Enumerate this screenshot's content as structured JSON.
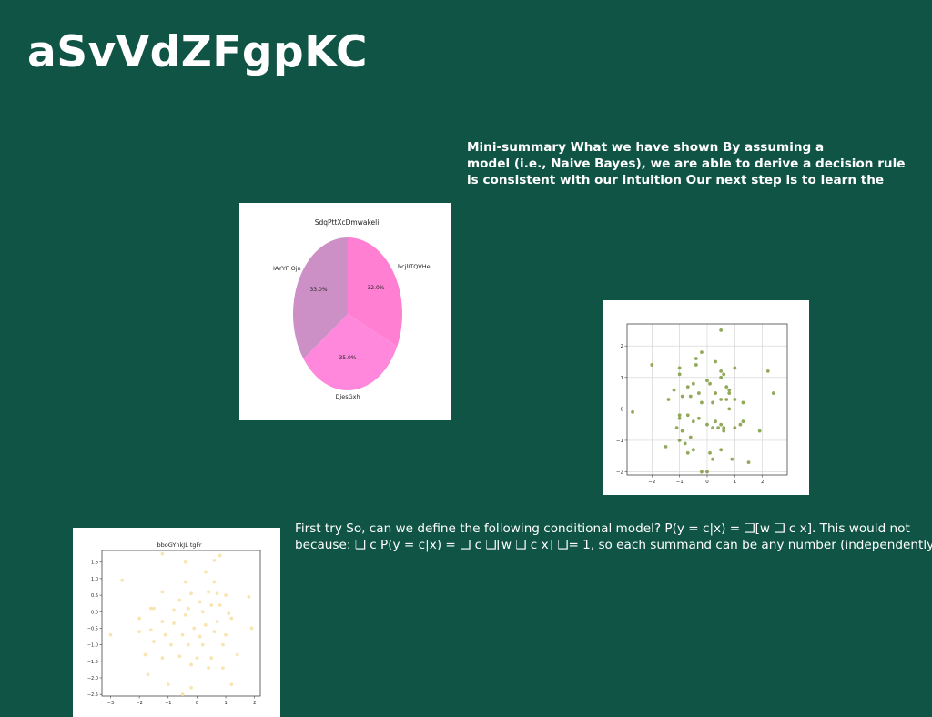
{
  "slide": {
    "title": "aSvVdZFgpKC",
    "summary_lines": [
      "Mini-summary What we have shown By assuming a",
      "model (i.e., Naive Bayes), we are able to derive a decision rule",
      "is consistent with our intuition Our next step is to learn the"
    ],
    "firsttry_lines": [
      "First try So, can we define the following conditional model? P(y = c|x) = ❑[w ❑ c x]. This would not",
      "because: ❑ c P(y = c|x) = ❑ c ❑[w ❑ c x] ❑= 1, so each summand can be any number (independently)"
    ]
  },
  "chart_data": [
    {
      "type": "pie",
      "title": "SdqPttXcDmwakeli",
      "slices": [
        {
          "label": "hcjlITQVHe",
          "value": 32.0,
          "pct_label": "32.0%",
          "color": "#ff7fd3"
        },
        {
          "label": "IAYYF Ojn",
          "value": 33.0,
          "pct_label": "33.0%",
          "color": "#ff88dd"
        },
        {
          "label": "DjesGxh",
          "value": 35.0,
          "pct_label": "35.0%",
          "color": "#cc8fc6"
        }
      ]
    },
    {
      "type": "scatter",
      "title": "",
      "color": "#7f9a3f",
      "xlim": [
        -2.9,
        2.9
      ],
      "ylim": [
        -2.1,
        2.7
      ],
      "xticks": [
        -2,
        -1,
        0,
        1,
        2
      ],
      "yticks": [
        -2,
        -1,
        0,
        1,
        2
      ],
      "tick_labels_x": [
        "−2",
        "−1",
        "0",
        "1",
        "2"
      ],
      "tick_labels_y": [
        "−2",
        "−1",
        "0",
        "1",
        "2"
      ],
      "grid": true,
      "points": [
        [
          0.5,
          2.5
        ],
        [
          -0.2,
          1.8
        ],
        [
          -0.4,
          1.6
        ],
        [
          -0.4,
          1.4
        ],
        [
          0.3,
          1.5
        ],
        [
          -1,
          1.3
        ],
        [
          -1,
          1.1
        ],
        [
          -2,
          1.4
        ],
        [
          1,
          1.3
        ],
        [
          0.5,
          1.2
        ],
        [
          0.6,
          1.1
        ],
        [
          0.5,
          1
        ],
        [
          2.2,
          1.2
        ],
        [
          2.4,
          0.5
        ],
        [
          -1.2,
          0.6
        ],
        [
          -0.7,
          0.7
        ],
        [
          -0.5,
          0.8
        ],
        [
          0,
          0.9
        ],
        [
          0.1,
          0.8
        ],
        [
          0.3,
          0.5
        ],
        [
          0.7,
          0.7
        ],
        [
          0.8,
          0.6
        ],
        [
          0.7,
          0.3
        ],
        [
          0.8,
          0.5
        ],
        [
          -1.4,
          0.3
        ],
        [
          -0.9,
          0.4
        ],
        [
          -0.6,
          0.4
        ],
        [
          -0.3,
          0.5
        ],
        [
          -0.2,
          0.2
        ],
        [
          0.2,
          0.2
        ],
        [
          0.5,
          0.3
        ],
        [
          1,
          0.3
        ],
        [
          1.3,
          0.2
        ],
        [
          -1,
          -0.2
        ],
        [
          -1,
          -0.3
        ],
        [
          -0.7,
          -0.2
        ],
        [
          -0.5,
          -0.4
        ],
        [
          -0.3,
          -0.3
        ],
        [
          0,
          -0.5
        ],
        [
          0.2,
          -0.6
        ],
        [
          0.3,
          -0.4
        ],
        [
          0.4,
          -0.6
        ],
        [
          0.5,
          -0.5
        ],
        [
          0.6,
          -0.7
        ],
        [
          1,
          -0.6
        ],
        [
          1.2,
          -0.5
        ],
        [
          1.3,
          -0.4
        ],
        [
          -1.1,
          -0.6
        ],
        [
          -0.9,
          -0.7
        ],
        [
          -0.6,
          -0.9
        ],
        [
          -2.7,
          -0.1
        ],
        [
          -1.5,
          -1.2
        ],
        [
          -1,
          -1
        ],
        [
          -0.8,
          -1.1
        ],
        [
          -0.7,
          -1.4
        ],
        [
          -0.5,
          -1.3
        ],
        [
          0.1,
          -1.4
        ],
        [
          0.5,
          -1.3
        ],
        [
          0.9,
          -1.6
        ],
        [
          1.5,
          -1.7
        ],
        [
          1.9,
          -0.7
        ],
        [
          -0.2,
          -2
        ],
        [
          0,
          -2
        ],
        [
          0.2,
          -1.6
        ],
        [
          0.6,
          -0.6
        ],
        [
          0.8,
          0
        ]
      ]
    },
    {
      "type": "scatter",
      "title": "bboGYnkJL tgFr",
      "color": "#f7e2a8",
      "xlim": [
        -3.3,
        2.2
      ],
      "ylim": [
        -2.55,
        1.85
      ],
      "xticks": [
        -3,
        -2,
        -1,
        0,
        1,
        2
      ],
      "yticks": [
        -2.5,
        -2.0,
        -1.5,
        -1.0,
        -0.5,
        0.0,
        0.5,
        1.0,
        1.5
      ],
      "tick_labels_x": [
        "−3",
        "−2",
        "−1",
        "0",
        "1",
        "2"
      ],
      "tick_labels_y": [
        "−2.5",
        "−2.0",
        "−1.5",
        "−1.0",
        "−0.5",
        "0.0",
        "0.5",
        "1.0",
        "1.5"
      ],
      "grid": false,
      "points": [
        [
          -1.2,
          1.75
        ],
        [
          0.8,
          1.7
        ],
        [
          0.6,
          1.55
        ],
        [
          -0.4,
          1.5
        ],
        [
          0.3,
          1.2
        ],
        [
          -2.6,
          0.95
        ],
        [
          -0.4,
          0.9
        ],
        [
          0.6,
          0.9
        ],
        [
          -1.2,
          0.6
        ],
        [
          -0.2,
          0.55
        ],
        [
          0.7,
          0.55
        ],
        [
          1,
          0.5
        ],
        [
          1.8,
          0.45
        ],
        [
          -0.6,
          0.35
        ],
        [
          0.1,
          0.3
        ],
        [
          -1.5,
          0.1
        ],
        [
          -1.6,
          0.1
        ],
        [
          -0.8,
          0.05
        ],
        [
          -0.3,
          0.1
        ],
        [
          0.2,
          0
        ],
        [
          0.5,
          0.2
        ],
        [
          1.1,
          -0.05
        ],
        [
          -0.4,
          -0.1
        ],
        [
          -2,
          -0.2
        ],
        [
          -1.2,
          -0.3
        ],
        [
          -0.8,
          -0.35
        ],
        [
          0.3,
          -0.4
        ],
        [
          0.7,
          -0.3
        ],
        [
          1.2,
          -0.2
        ],
        [
          1.9,
          -0.5
        ],
        [
          -3,
          -0.7
        ],
        [
          -2,
          -0.6
        ],
        [
          -1.6,
          -0.55
        ],
        [
          -1.1,
          -0.7
        ],
        [
          -0.5,
          -0.7
        ],
        [
          0.1,
          -0.75
        ],
        [
          0.6,
          -0.6
        ],
        [
          1,
          -0.7
        ],
        [
          -1.5,
          -0.9
        ],
        [
          -0.9,
          -1
        ],
        [
          -0.3,
          -1
        ],
        [
          0.2,
          -1
        ],
        [
          0.9,
          -1
        ],
        [
          1.4,
          -1.3
        ],
        [
          -1.8,
          -1.3
        ],
        [
          -1.2,
          -1.4
        ],
        [
          -0.6,
          -1.35
        ],
        [
          0,
          -1.4
        ],
        [
          0.5,
          -1.4
        ],
        [
          -0.2,
          -1.6
        ],
        [
          0.4,
          -1.7
        ],
        [
          0.9,
          -1.7
        ],
        [
          -1.7,
          -1.9
        ],
        [
          -1,
          -2.2
        ],
        [
          -0.2,
          -2.3
        ],
        [
          1.2,
          -2.2
        ],
        [
          -0.5,
          -2.5
        ],
        [
          0.8,
          0.2
        ],
        [
          -0.1,
          -0.5
        ],
        [
          0.4,
          0.6
        ]
      ]
    }
  ]
}
